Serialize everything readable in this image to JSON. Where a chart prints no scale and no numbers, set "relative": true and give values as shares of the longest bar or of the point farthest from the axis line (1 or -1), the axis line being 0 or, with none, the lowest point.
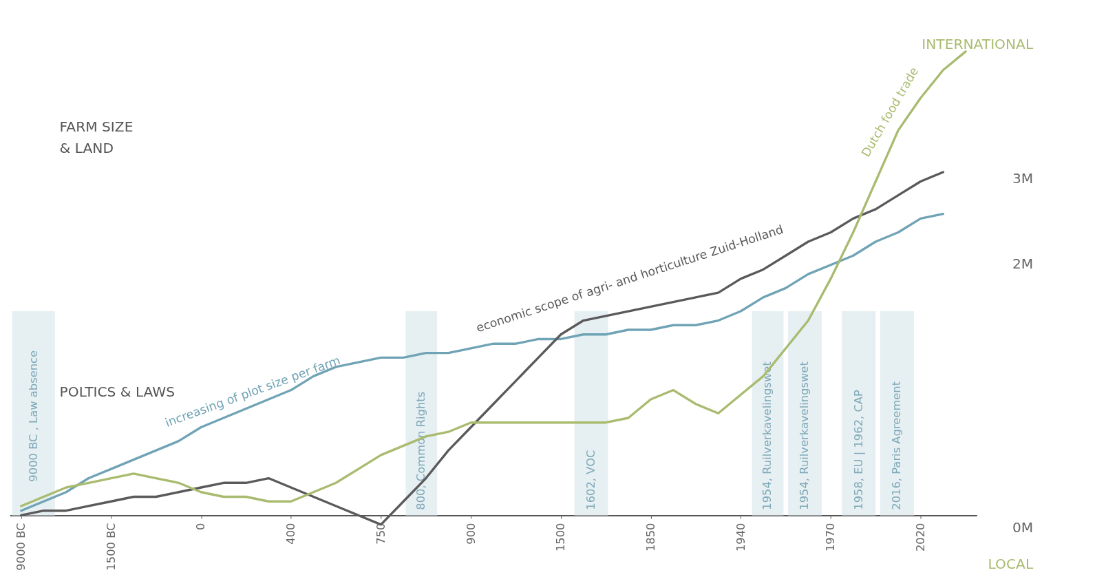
{
  "chart_data": {
    "type": "line",
    "relative": true,
    "categories": [
      "9000 BC",
      null,
      null,
      null,
      "1500 BC",
      null,
      null,
      null,
      "0",
      null,
      null,
      null,
      "400",
      null,
      null,
      null,
      "750",
      null,
      null,
      null,
      "900",
      null,
      null,
      null,
      "1500",
      null,
      null,
      null,
      "1850",
      null,
      null,
      null,
      "1940",
      null,
      null,
      null,
      "1970",
      null,
      null,
      null,
      "2020",
      null,
      null
    ],
    "series": [
      {
        "name": "increasing of plot size per farm",
        "color": "#6fa3b5",
        "values": [
          0.01,
          0.03,
          0.05,
          0.08,
          0.1,
          0.12,
          0.14,
          0.16,
          0.19,
          0.21,
          0.23,
          0.25,
          0.27,
          0.3,
          0.32,
          0.33,
          0.34,
          0.34,
          0.35,
          0.35,
          0.36,
          0.37,
          0.37,
          0.38,
          0.38,
          0.39,
          0.39,
          0.4,
          0.4,
          0.41,
          0.41,
          0.42,
          0.44,
          0.47,
          0.49,
          0.52,
          0.54,
          0.56,
          0.59,
          0.61,
          0.64,
          0.65,
          null
        ]
      },
      {
        "name": "economic scope of agri- and horticulture Zuid-Holland",
        "color": "#5a5a5a",
        "values": [
          0,
          0.01,
          0.01,
          0.02,
          0.03,
          0.04,
          0.04,
          0.05,
          0.06,
          0.07,
          0.07,
          0.08,
          0.06,
          0.04,
          0.02,
          0,
          -0.02,
          0.03,
          0.08,
          0.14,
          0.19,
          0.24,
          0.29,
          0.34,
          0.39,
          0.42,
          0.43,
          0.44,
          0.45,
          0.46,
          0.47,
          0.48,
          0.51,
          0.53,
          0.56,
          0.59,
          0.61,
          0.64,
          0.66,
          0.69,
          0.72,
          0.74,
          null
        ]
      },
      {
        "name": "Dutch food trade",
        "color": "#a9bb6f",
        "values": [
          0.02,
          0.04,
          0.06,
          0.07,
          0.08,
          0.09,
          0.08,
          0.07,
          0.05,
          0.04,
          0.04,
          0.03,
          0.03,
          0.05,
          0.07,
          0.1,
          0.13,
          0.15,
          0.17,
          0.18,
          0.2,
          0.2,
          0.2,
          0.2,
          0.2,
          0.2,
          0.2,
          0.21,
          0.25,
          0.27,
          0.24,
          0.22,
          0.26,
          0.3,
          0.36,
          0.42,
          0.51,
          0.61,
          0.72,
          0.83,
          0.9,
          0.96,
          1
        ]
      }
    ],
    "annotations": [
      "FARM SIZE\n& LAND",
      "POLTICS & LAWS",
      "INTERNATIONAL",
      "LOCAL",
      "0M",
      "2M",
      "3M",
      "9000 BC , Law absence",
      "800, Common Rights",
      "1602, VOC",
      "1954, Ruilverkavelingswet",
      "1954, Ruilverkavelingswet",
      "1958, EU | 1962, CAP",
      "2016, Paris Agreement"
    ],
    "grid": false,
    "tick_labels": "x"
  }
}
